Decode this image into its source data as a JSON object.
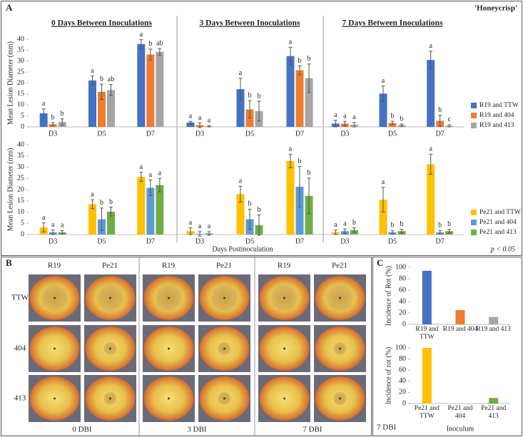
{
  "panel_a": {
    "label": "A",
    "cultivar": "'Honeycrisp'",
    "x_label": "Days Postinoculation",
    "note": "p < 0.05"
  },
  "panel_b": {
    "label": "B",
    "rows": [
      "TTW",
      "404",
      "413"
    ],
    "groups": [
      {
        "columns": [
          "R19",
          "Pe21"
        ],
        "caption": "0 DBI"
      },
      {
        "columns": [
          "R19",
          "Pe21"
        ],
        "caption": "3 DBI"
      },
      {
        "columns": [
          "R19",
          "Pe21"
        ],
        "caption": "7 DBI"
      }
    ]
  },
  "panel_c": {
    "label": "C",
    "caption": "7 DBI"
  },
  "chart_data": [
    {
      "type": "bar",
      "title": "0 Days Between Inoculations",
      "y_label": "Mean Lesion Diameter (mm)",
      "categories": [
        "D3",
        "D5",
        "D7"
      ],
      "ylim": [
        0,
        40
      ],
      "yticks": [
        0,
        5,
        10,
        15,
        20,
        25,
        30,
        35,
        40
      ],
      "series": [
        {
          "color": "#4472c4",
          "values": [
            6.2,
            21.2,
            37.8
          ],
          "errors": [
            2,
            2,
            2
          ],
          "letters": [
            "a",
            "a",
            "a"
          ]
        },
        {
          "color": "#ed7d31",
          "values": [
            1.2,
            16,
            33
          ],
          "errors": [
            0.7,
            3.5,
            2.5
          ],
          "letters": [
            "b",
            "b",
            "b"
          ]
        },
        {
          "color": "#a5a5a5",
          "values": [
            2.2,
            16.8,
            34.2
          ],
          "errors": [
            1.5,
            2.5,
            1.5
          ],
          "letters": [
            "b",
            "ab",
            "ab"
          ]
        }
      ]
    },
    {
      "type": "bar",
      "title": "3 Days Between Inoculations",
      "categories": [
        "D3",
        "D5",
        "D7"
      ],
      "ylim": [
        0,
        40
      ],
      "series": [
        {
          "color": "#4472c4",
          "values": [
            2,
            17.2,
            32.3
          ],
          "errors": [
            0.5,
            5,
            4
          ],
          "letters": [
            "a",
            "a",
            "a"
          ]
        },
        {
          "color": "#ed7d31",
          "values": [
            0.8,
            8,
            25.8
          ],
          "errors": [
            1,
            4,
            2
          ],
          "letters": [
            "a",
            "b",
            "b"
          ]
        },
        {
          "color": "#a5a5a5",
          "values": [
            0.3,
            7.2,
            22.2
          ],
          "errors": [
            0.3,
            4.5,
            6.5
          ],
          "letters": [
            "a",
            "b",
            "b"
          ]
        }
      ]
    },
    {
      "type": "bar",
      "title": "7 Days Between Inoculations",
      "categories": [
        "D3",
        "D5",
        "D7"
      ],
      "ylim": [
        0,
        40
      ],
      "series": [
        {
          "name": "R19 and TTW",
          "color": "#4472c4",
          "values": [
            1.5,
            15.2,
            30.5
          ],
          "errors": [
            1.5,
            3.5,
            4
          ],
          "letters": [
            "a",
            "a",
            "a"
          ]
        },
        {
          "name": "R19 and 404",
          "color": "#ed7d31",
          "values": [
            1.5,
            1.8,
            2.8
          ],
          "errors": [
            1,
            0.8,
            2.5
          ],
          "letters": [
            "a",
            "b",
            "b"
          ]
        },
        {
          "name": "R19 and 413",
          "color": "#a5a5a5",
          "values": [
            1,
            0.8,
            0.5
          ],
          "errors": [
            1,
            0.5,
            0.5
          ],
          "letters": [
            "a",
            "b",
            "c"
          ]
        }
      ]
    },
    {
      "type": "bar",
      "y_label": "Mean Lesion Diameter (mm)",
      "categories": [
        "D3",
        "D5",
        "D7"
      ],
      "ylim": [
        0,
        40
      ],
      "yticks": [
        0,
        5,
        10,
        15,
        20,
        25,
        30,
        35,
        40
      ],
      "series": [
        {
          "color": "#ffc000",
          "values": [
            3.2,
            13.5,
            25.7
          ],
          "errors": [
            2,
            2,
            2
          ],
          "letters": [
            "a",
            "a",
            "a"
          ]
        },
        {
          "color": "#5b9bd5",
          "values": [
            1,
            6.8,
            20.8
          ],
          "errors": [
            1,
            5,
            3.5
          ],
          "letters": [
            "a",
            "b",
            "a"
          ]
        },
        {
          "color": "#70ad47",
          "values": [
            1,
            10.2,
            22
          ],
          "errors": [
            0.8,
            2,
            3
          ],
          "letters": [
            "a",
            "b",
            "a"
          ]
        }
      ]
    },
    {
      "type": "bar",
      "categories": [
        "D3",
        "D5",
        "D7"
      ],
      "ylim": [
        0,
        40
      ],
      "series": [
        {
          "color": "#ffc000",
          "values": [
            1.5,
            18,
            32.8
          ],
          "errors": [
            1.5,
            3.5,
            3
          ],
          "letters": [
            "a",
            "a",
            "a"
          ]
        },
        {
          "color": "#5b9bd5",
          "values": [
            0.3,
            6.8,
            21.3
          ],
          "errors": [
            1,
            4.5,
            9
          ],
          "letters": [
            "a",
            "b",
            "b"
          ]
        },
        {
          "color": "#70ad47",
          "values": [
            0.5,
            4.2,
            17.2
          ],
          "errors": [
            0.8,
            4.5,
            8
          ],
          "letters": [
            "a",
            "b",
            "b"
          ]
        }
      ]
    },
    {
      "type": "bar",
      "categories": [
        "D3",
        "D5",
        "D7"
      ],
      "ylim": [
        0,
        40
      ],
      "series": [
        {
          "name": "Pe21 and TTW",
          "color": "#ffc000",
          "values": [
            1,
            15.5,
            31.3
          ],
          "errors": [
            1,
            5.5,
            4.5
          ],
          "letters": [
            "a",
            "a",
            "a"
          ]
        },
        {
          "name": "Pe21 and 404",
          "color": "#5b9bd5",
          "values": [
            1.5,
            1,
            1
          ],
          "errors": [
            1,
            0.8,
            0.8
          ],
          "letters": [
            "a",
            "b",
            "b"
          ]
        },
        {
          "name": "Pe21 and 413",
          "color": "#70ad47",
          "values": [
            2,
            1.5,
            1.5
          ],
          "errors": [
            1,
            0.8,
            0.8
          ],
          "letters": [
            "b",
            "b",
            "b"
          ]
        }
      ]
    },
    {
      "type": "bar",
      "y_label": "Incidence of Rot (%)",
      "categories": [
        "R19 and TTW",
        "R19 and 404",
        "R19 and 413"
      ],
      "values": [
        94,
        25,
        13
      ],
      "colors": [
        "#4472c4",
        "#ed7d31",
        "#a5a5a5"
      ],
      "ylim": [
        0,
        100
      ],
      "yticks": [
        0,
        20,
        40,
        60,
        80,
        100
      ]
    },
    {
      "type": "bar",
      "y_label": "Incidence of rot (%)",
      "x_label": "Inoculum",
      "categories": [
        "Pe21 and TTW",
        "Pe21 and 404",
        "Pe21 and 413"
      ],
      "values": [
        100,
        0,
        10
      ],
      "colors": [
        "#ffc000",
        "#5b9bd5",
        "#70ad47"
      ],
      "ylim": [
        0,
        100
      ],
      "yticks": [
        0,
        20,
        40,
        60,
        80,
        100
      ]
    }
  ]
}
